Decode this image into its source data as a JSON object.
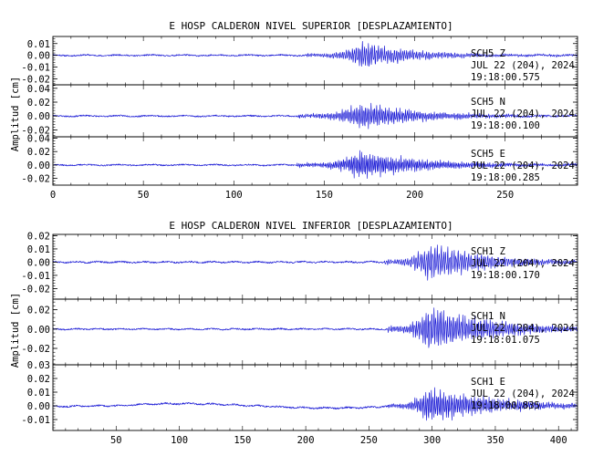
{
  "colors": {
    "trace": "#1f1fd6",
    "axis": "#000000",
    "background": "#ffffff"
  },
  "chart_data": [
    {
      "type": "line",
      "title": "E HOSP CALDERON NIVEL SUPERIOR [DESPLAZAMIENTO]",
      "ylabel": "Amplitud [cm]",
      "xlim": [
        0,
        290
      ],
      "x_ticks": [
        "0",
        "50",
        "100",
        "150",
        "200",
        "250"
      ],
      "x_tick_values": [
        0,
        50,
        100,
        150,
        200,
        250
      ],
      "x_tick_labels_shown": true,
      "channels": [
        {
          "station": "SCH5",
          "component": "Z",
          "date_line": "JUL 22 (204), 2024",
          "time_line": "19:18:00.575",
          "ylim": [
            -0.025,
            0.016
          ],
          "y_ticks": [
            "0.01",
            "0.00",
            "-0.01",
            "-0.02"
          ],
          "y_tick_values": [
            0.01,
            0.0,
            -0.01,
            -0.02
          ],
          "signal": {
            "onset": 140,
            "peak_time": 172,
            "peak_amp": 0.014,
            "noise": 0.0006,
            "decay": 28,
            "freq": 0.9,
            "drift": 0.0,
            "seed": 11
          }
        },
        {
          "station": "SCH5",
          "component": "N",
          "date_line": "JUL 22 (204), 2024",
          "time_line": "19:18:00.100",
          "ylim": [
            -0.03,
            0.045
          ],
          "y_ticks": [
            "0.04",
            "0.02",
            "0.00",
            "-0.02"
          ],
          "y_tick_values": [
            0.04,
            0.02,
            0.0,
            -0.02
          ],
          "signal": {
            "onset": 135,
            "peak_time": 171,
            "peak_amp": 0.024,
            "noise": 0.001,
            "decay": 34,
            "freq": 1.0,
            "drift": 0.0,
            "seed": 23
          }
        },
        {
          "station": "SCH5",
          "component": "E",
          "date_line": "JUL 22 (204), 2024",
          "time_line": "19:18:00.285",
          "ylim": [
            -0.03,
            0.042
          ],
          "y_ticks": [
            "0.04",
            "0.02",
            "0.00",
            "-0.02"
          ],
          "y_tick_values": [
            0.04,
            0.02,
            0.0,
            -0.02
          ],
          "signal": {
            "onset": 135,
            "peak_time": 170,
            "peak_amp": 0.026,
            "noise": 0.001,
            "decay": 38,
            "freq": 1.1,
            "drift": 0.0,
            "seed": 37
          }
        }
      ]
    },
    {
      "type": "line",
      "title": "E HOSP CALDERON NIVEL INFERIOR [DESPLAZAMIENTO]",
      "ylabel": "Amplitud [cm]",
      "xlim": [
        0,
        415
      ],
      "x_ticks": [
        "50",
        "100",
        "150",
        "200",
        "250",
        "300",
        "350",
        "400"
      ],
      "x_tick_values": [
        50,
        100,
        150,
        200,
        250,
        300,
        350,
        400
      ],
      "x_tick_labels_shown": true,
      "channels": [
        {
          "station": "SCH1",
          "component": "Z",
          "date_line": "JUL 22 (204), 2024",
          "time_line": "19:18:00.170",
          "ylim": [
            -0.028,
            0.021
          ],
          "y_ticks": [
            "0.02",
            "0.01",
            "0.00",
            "-0.01",
            "-0.02"
          ],
          "y_tick_values": [
            0.02,
            0.01,
            0.0,
            -0.01,
            -0.02
          ],
          "signal": {
            "onset": 262,
            "peak_time": 298,
            "peak_amp": 0.018,
            "noise": 0.0006,
            "decay": 45,
            "freq": 0.6,
            "drift": 0.0,
            "seed": 51
          }
        },
        {
          "station": "SCH1",
          "component": "N",
          "date_line": "JUL 22 (204), 2024",
          "time_line": "19:18:01.075",
          "ylim": [
            -0.037,
            0.031
          ],
          "y_ticks": [
            "0.02",
            "0.00",
            "-0.02"
          ],
          "y_tick_values": [
            0.02,
            0.0,
            -0.02
          ],
          "signal": {
            "onset": 265,
            "peak_time": 298,
            "peak_amp": 0.03,
            "noise": 0.0007,
            "decay": 50,
            "freq": 0.65,
            "drift": 0.0,
            "seed": 67
          }
        },
        {
          "station": "SCH1",
          "component": "E",
          "date_line": "JUL 22 (204), 2024",
          "time_line": "19:18:00.835",
          "ylim": [
            -0.018,
            0.03
          ],
          "y_ticks": [
            "0.03",
            "0.02",
            "0.01",
            "0.00",
            "-0.01"
          ],
          "y_tick_values": [
            0.03,
            0.02,
            0.01,
            0.0,
            -0.01
          ],
          "signal": {
            "onset": 265,
            "peak_time": 298,
            "peak_amp": 0.016,
            "noise": 0.0006,
            "decay": 55,
            "freq": 0.7,
            "drift": 0.0016,
            "seed": 83
          }
        }
      ]
    }
  ]
}
